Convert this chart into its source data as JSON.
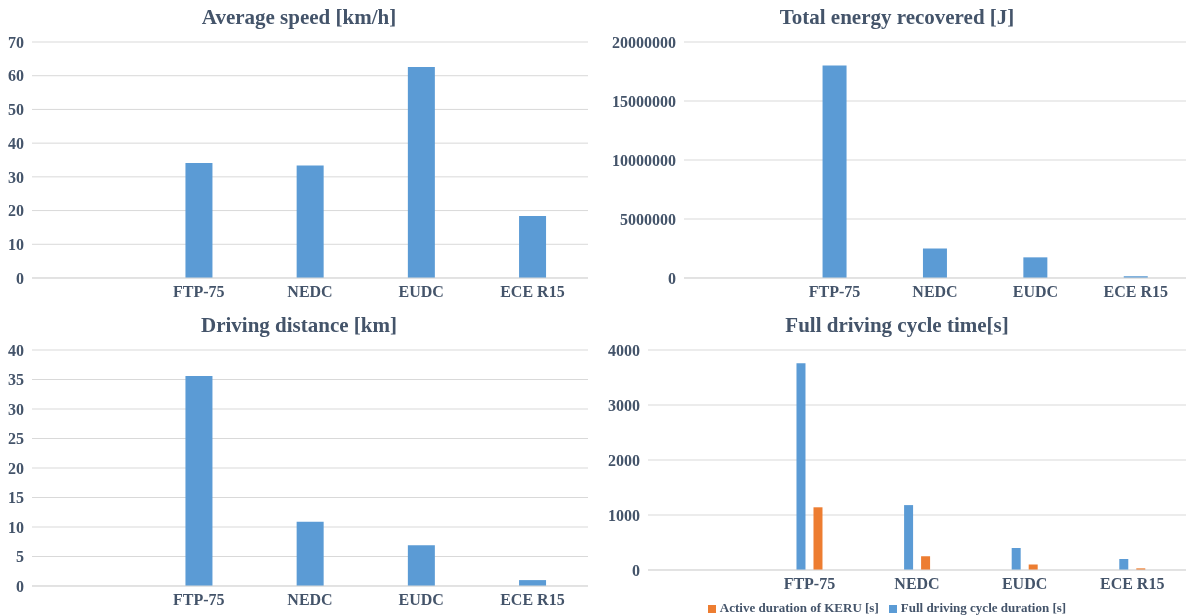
{
  "chart_data": [
    {
      "type": "bar",
      "title": "Average speed [km/h]",
      "categories": [
        null,
        "FTP-75",
        "NEDC",
        "EUDC",
        "ECE R15"
      ],
      "values": [
        null,
        34.1,
        33.4,
        62.6,
        18.4
      ],
      "color": "#5b9bd5",
      "ylim": [
        0,
        70
      ],
      "yticks": [
        0,
        10,
        20,
        30,
        40,
        50,
        60,
        70
      ],
      "grid": "y"
    },
    {
      "type": "bar",
      "title": "Total energy recovered [J]",
      "categories": [
        null,
        "FTP-75",
        "NEDC",
        "EUDC",
        "ECE R15"
      ],
      "values": [
        null,
        18000000,
        2500000,
        1750000,
        150000
      ],
      "color": "#5b9bd5",
      "ylim": [
        0,
        20000000
      ],
      "yticks": [
        0,
        5000000,
        10000000,
        15000000,
        20000000
      ],
      "grid": "y"
    },
    {
      "type": "bar",
      "title": "Driving distance [km]",
      "categories": [
        null,
        "FTP-75",
        "NEDC",
        "EUDC",
        "ECE R15"
      ],
      "values": [
        null,
        35.6,
        10.9,
        6.9,
        1.0
      ],
      "color": "#5b9bd5",
      "ylim": [
        0,
        40
      ],
      "yticks": [
        0,
        5,
        10,
        15,
        20,
        25,
        30,
        35,
        40
      ],
      "grid": "y"
    },
    {
      "type": "bar",
      "title": "Full driving cycle time[s]",
      "categories": [
        null,
        "FTP-75",
        "NEDC",
        "EUDC",
        "ECE R15"
      ],
      "series": [
        {
          "name": "Full driving cycle duration [s]",
          "color": "#5b9bd5",
          "values": [
            null,
            3760,
            1180,
            400,
            200
          ]
        },
        {
          "name": "Active duration of KERU [s]",
          "color": "#ed7d31",
          "values": [
            null,
            1140,
            250,
            100,
            30
          ]
        }
      ],
      "ylim": [
        0,
        4000
      ],
      "yticks": [
        0,
        1000,
        2000,
        3000,
        4000
      ],
      "grid": "y",
      "legend": "bottom"
    }
  ]
}
